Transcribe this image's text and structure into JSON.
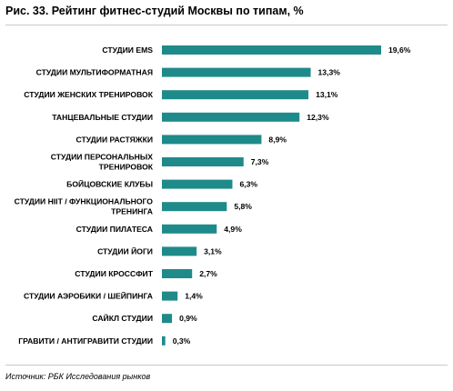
{
  "title": "Рис. 33. Рейтинг фитнес-студий Москвы по типам, %",
  "source": "Источник: РБК Исследования рынков",
  "colors": {
    "bar": "#1f8a8a"
  },
  "chart_data": {
    "type": "bar",
    "orientation": "horizontal",
    "title": "Рис. 33. Рейтинг фитнес-студий Москвы по типам, %",
    "categories": [
      [
        "СТУДИИ EMS"
      ],
      [
        "СТУДИИ МУЛЬТИФОРМАТНАЯ"
      ],
      [
        "СТУДИИ ЖЕНСКИХ ТРЕНИРОВОК"
      ],
      [
        "ТАНЦЕВАЛЬНЫЕ СТУДИИ"
      ],
      [
        "СТУДИИ РАСТЯЖКИ"
      ],
      [
        "СТУДИИ ПЕРСОНАЛЬНЫХ",
        "ТРЕНИРОВОК"
      ],
      [
        "БОЙЦОВСКИЕ КЛУБЫ"
      ],
      [
        "СТУДИИ HIIT / ФУНКЦИОНАЛЬНОГО",
        "ТРЕНИНГА"
      ],
      [
        "СТУДИИ ПИЛАТЕСА"
      ],
      [
        "СТУДИИ ЙОГИ"
      ],
      [
        "СТУДИИ КРОССФИТ"
      ],
      [
        "СТУДИИ АЭРОБИКИ / ШЕЙПИНГА"
      ],
      [
        "САЙКЛ СТУДИИ"
      ],
      [
        "ГРАВИТИ / АНТИГРАВИТИ СТУДИИ"
      ]
    ],
    "values": [
      19.6,
      13.3,
      13.1,
      12.3,
      8.9,
      7.3,
      6.3,
      5.8,
      4.9,
      3.1,
      2.7,
      1.4,
      0.9,
      0.3
    ],
    "value_labels": [
      "19,6%",
      "13,3%",
      "13,1%",
      "12,3%",
      "8,9%",
      "7,3%",
      "6,3%",
      "5,8%",
      "4,9%",
      "3,1%",
      "2,7%",
      "1,4%",
      "0,9%",
      "0,3%"
    ],
    "xlim": [
      0,
      19.6
    ],
    "grid": false,
    "legend": "none"
  }
}
